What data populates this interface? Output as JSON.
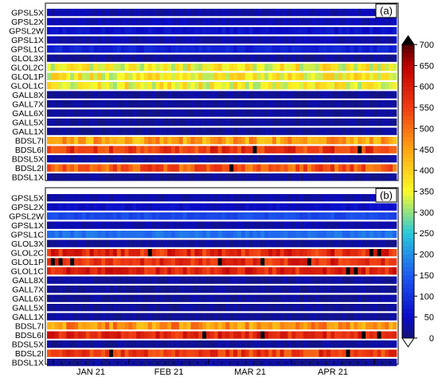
{
  "chart_data": [
    {
      "type": "heatmap",
      "panel_label": "(a)",
      "x_ticks": [
        "JAN 21",
        "FEB 21",
        "MAR 21",
        "APR 21"
      ],
      "rows": [
        {
          "name": "GPSL5X",
          "level": 30
        },
        {
          "name": "GPSL2X",
          "level": 40
        },
        {
          "name": "GPSL2W",
          "level": 60
        },
        {
          "name": "GPSL1X",
          "level": 30
        },
        {
          "name": "GPSL1C",
          "level": 80
        },
        {
          "name": "GLOL3X",
          "level": 20
        },
        {
          "name": "GLOL2C",
          "level": 360
        },
        {
          "name": "GLOL1P",
          "level": 360
        },
        {
          "name": "GLOL1C",
          "level": 360
        },
        {
          "name": "GALL8X",
          "level": 20
        },
        {
          "name": "GALL7X",
          "level": 20
        },
        {
          "name": "GALL6X",
          "level": 20
        },
        {
          "name": "GALL5X",
          "level": 20
        },
        {
          "name": "GALL1X",
          "level": 20
        },
        {
          "name": "BDSL7I",
          "level": 450
        },
        {
          "name": "BDSL6I",
          "level": 560
        },
        {
          "name": "BDSL5X",
          "level": 20
        },
        {
          "name": "BDSL2I",
          "level": 530
        },
        {
          "name": "BDSL1X",
          "level": 20
        }
      ]
    },
    {
      "type": "heatmap",
      "panel_label": "(b)",
      "x_ticks": [
        "JAN 21",
        "FEB 21",
        "MAR 21",
        "APR 21"
      ],
      "rows": [
        {
          "name": "GPSL5X",
          "level": 30
        },
        {
          "name": "GPSL2X",
          "level": 50
        },
        {
          "name": "GPSL2W",
          "level": 130
        },
        {
          "name": "GPSL1X",
          "level": 30
        },
        {
          "name": "GPSL1C",
          "level": 170
        },
        {
          "name": "GLOL3X",
          "level": 20
        },
        {
          "name": "GLOL2C",
          "level": 580
        },
        {
          "name": "GLOL1P",
          "level": 580
        },
        {
          "name": "GLOL1C",
          "level": 590
        },
        {
          "name": "GALL8X",
          "level": 20
        },
        {
          "name": "GALL7X",
          "level": 20
        },
        {
          "name": "GALL6X",
          "level": 20
        },
        {
          "name": "GALL5X",
          "level": 20
        },
        {
          "name": "GALL1X",
          "level": 20
        },
        {
          "name": "BDSL7I",
          "level": 470
        },
        {
          "name": "BDSL6I",
          "level": 580
        },
        {
          "name": "BDSL5X",
          "level": 20
        },
        {
          "name": "BDSL2I",
          "level": 560
        },
        {
          "name": "BDSL1X",
          "level": 20
        }
      ]
    }
  ],
  "colorbar": {
    "min": 0,
    "max": 700,
    "ticks": [
      "0",
      "50",
      "100",
      "150",
      "200",
      "250",
      "300",
      "350",
      "400",
      "450",
      "500",
      "550",
      "600",
      "650",
      "700"
    ],
    "extend": "both"
  }
}
